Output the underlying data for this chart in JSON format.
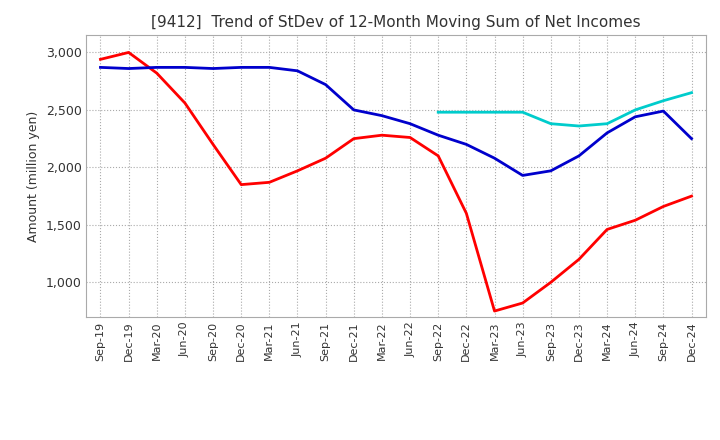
{
  "title": "[9412]  Trend of StDev of 12-Month Moving Sum of Net Incomes",
  "ylabel": "Amount (million yen)",
  "ylim": [
    700,
    3150
  ],
  "yticks": [
    1000,
    1500,
    2000,
    2500,
    3000
  ],
  "x_labels": [
    "Sep-19",
    "Dec-19",
    "Mar-20",
    "Jun-20",
    "Sep-20",
    "Dec-20",
    "Mar-21",
    "Jun-21",
    "Sep-21",
    "Dec-21",
    "Mar-22",
    "Jun-22",
    "Sep-22",
    "Dec-22",
    "Mar-23",
    "Jun-23",
    "Sep-23",
    "Dec-23",
    "Mar-24",
    "Jun-24",
    "Sep-24",
    "Dec-24"
  ],
  "series_3y": [
    2940,
    3000,
    2820,
    2560,
    2200,
    1850,
    1870,
    1970,
    2080,
    2250,
    2280,
    2260,
    2100,
    1600,
    750,
    820,
    1000,
    1200,
    1460,
    1540,
    1660,
    1750
  ],
  "series_5y": [
    2870,
    2860,
    2870,
    2870,
    2860,
    2870,
    2870,
    2840,
    2720,
    2500,
    2450,
    2380,
    2280,
    2200,
    2080,
    1930,
    1970,
    2100,
    2300,
    2440,
    2490,
    2250
  ],
  "series_7y": [
    null,
    null,
    null,
    null,
    null,
    null,
    null,
    null,
    null,
    null,
    null,
    null,
    2480,
    2480,
    2480,
    2480,
    2380,
    2360,
    2380,
    2500,
    2580,
    2650
  ],
  "series_10y": [
    null,
    null,
    null,
    null,
    null,
    null,
    null,
    null,
    null,
    null,
    null,
    null,
    null,
    null,
    null,
    null,
    null,
    null,
    null,
    null,
    null,
    null
  ],
  "color_3y": "#ff0000",
  "color_5y": "#0000cc",
  "color_7y": "#00cccc",
  "color_10y": "#008800",
  "bg_color": "#ffffff",
  "grid_color": "#aaaaaa"
}
